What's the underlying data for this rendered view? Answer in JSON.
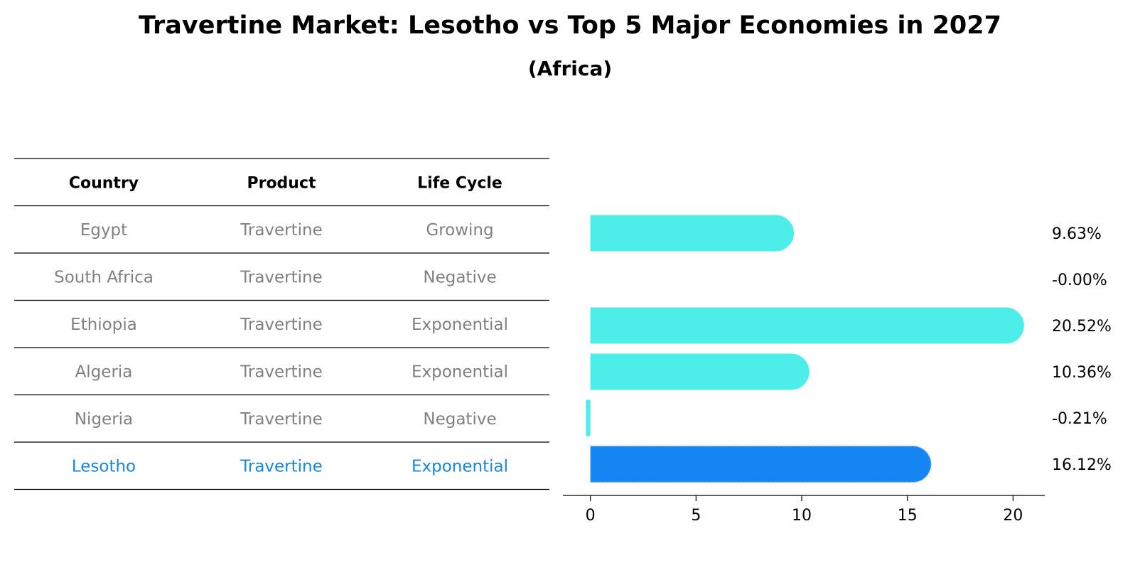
{
  "title": "Travertine Market: Lesotho vs Top 5 Major Economies in 2027",
  "subtitle": "(Africa)",
  "table": {
    "headers": [
      "Country",
      "Product",
      "Life Cycle"
    ],
    "rows": [
      {
        "country": "Egypt",
        "product": "Travertine",
        "life_cycle": "Growing",
        "highlight": false
      },
      {
        "country": "South Africa",
        "product": "Travertine",
        "life_cycle": "Negative",
        "highlight": false
      },
      {
        "country": "Ethiopia",
        "product": "Travertine",
        "life_cycle": "Exponential",
        "highlight": false
      },
      {
        "country": "Algeria",
        "product": "Travertine",
        "life_cycle": "Exponential",
        "highlight": false
      },
      {
        "country": "Nigeria",
        "product": "Travertine",
        "life_cycle": "Negative",
        "highlight": false
      },
      {
        "country": "Lesotho",
        "product": "Travertine",
        "life_cycle": "Exponential",
        "highlight": true
      }
    ]
  },
  "colors": {
    "bar": "#4deee9",
    "highlight_bar": "#1685f4",
    "text_muted": "#808080",
    "text_highlight": "#1a86d9"
  },
  "chart_data": {
    "type": "bar",
    "orientation": "horizontal",
    "categories": [
      "Egypt",
      "South Africa",
      "Ethiopia",
      "Algeria",
      "Nigeria",
      "Lesotho"
    ],
    "values": [
      9.63,
      -0.0,
      20.52,
      10.36,
      -0.21,
      16.12
    ],
    "value_labels": [
      "9.63%",
      "-0.00%",
      "20.52%",
      "10.36%",
      "-0.21%",
      "16.12%"
    ],
    "highlight_category": "Lesotho",
    "xlim": [
      -1.3,
      21.5
    ],
    "xticks": [
      0,
      5,
      10,
      15,
      20
    ],
    "grid": false
  }
}
